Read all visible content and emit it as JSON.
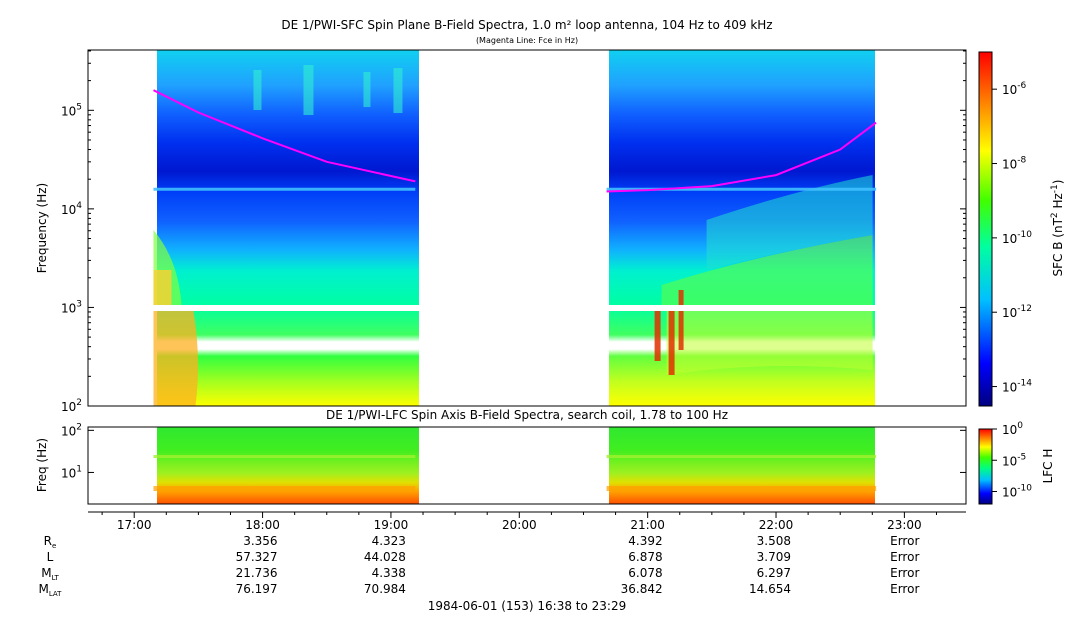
{
  "chart_data": [
    {
      "type": "heatmap",
      "title": "DE 1/PWI-SFC  Spin Plane B-Field Spectra, 1.0 m² loop antenna, 104 Hz to 409 kHz",
      "subtitle": "(Magenta Line: Fce in Hz)",
      "ylabel": "Frequency (Hz)",
      "yscale": "log",
      "ylim": [
        100,
        409000
      ],
      "ytick_values": [
        100,
        1000,
        10000,
        100000
      ],
      "ytick_bases": [
        "10",
        "10",
        "10",
        "10"
      ],
      "ytick_exps": [
        "2",
        "3",
        "4",
        "5"
      ],
      "xlim_hours": [
        16.64,
        23.48
      ],
      "data_segments_hours": [
        [
          17.15,
          19.19
        ],
        [
          20.68,
          22.78
        ]
      ],
      "colorbar": {
        "label_main": "SFC B (nT",
        "label_exp1": "2",
        "label_mid": " Hz",
        "label_exp2": "-1",
        "label_end": ")",
        "scale": "log",
        "range": [
          3e-15,
          1e-05
        ],
        "ticks": [
          {
            "base": "10",
            "exp": "-6",
            "value": 1e-06
          },
          {
            "base": "10",
            "exp": "-8",
            "value": 1e-08
          },
          {
            "base": "10",
            "exp": "-10",
            "value": 1e-10
          },
          {
            "base": "10",
            "exp": "-12",
            "value": 1e-12
          },
          {
            "base": "10",
            "exp": "-14",
            "value": 1e-14
          }
        ]
      },
      "fce_line": {
        "name": "Fce",
        "color": "#ff00ff",
        "segment1": {
          "hours": [
            17.15,
            17.5,
            18.0,
            18.5,
            19.19
          ],
          "freq_hz": [
            160000,
            95000,
            52000,
            30000,
            19000
          ]
        },
        "segment2": {
          "hours": [
            20.68,
            21.0,
            21.5,
            22.0,
            22.5,
            22.78
          ],
          "freq_hz": [
            15000,
            15500,
            17000,
            22000,
            40000,
            75000
          ]
        }
      }
    },
    {
      "type": "heatmap",
      "title": "DE 1/PWI-LFC  Spin Axis B-Field Spectra, search coil, 1.78 to 100 Hz",
      "ylabel": "Freq (Hz)",
      "yscale": "log",
      "ylim": [
        1.78,
        120
      ],
      "ytick_values": [
        10,
        100
      ],
      "ytick_bases": [
        "10",
        "10"
      ],
      "ytick_exps": [
        "1",
        "2"
      ],
      "colorbar": {
        "label": "LFC H",
        "scale": "log",
        "range": [
          1e-12,
          1
        ],
        "ticks": [
          {
            "base": "10",
            "exp": "0",
            "value": 1
          },
          {
            "base": "10",
            "exp": "-5",
            "value": 1e-05
          },
          {
            "base": "10",
            "exp": "-10",
            "value": 1e-10
          }
        ]
      }
    }
  ],
  "time_axis": {
    "ticks": [
      {
        "label": "17:00",
        "hour": 17
      },
      {
        "label": "18:00",
        "hour": 18
      },
      {
        "label": "19:00",
        "hour": 19
      },
      {
        "label": "20:00",
        "hour": 20
      },
      {
        "label": "21:00",
        "hour": 21
      },
      {
        "label": "22:00",
        "hour": 22
      },
      {
        "label": "23:00",
        "hour": 23
      }
    ],
    "date_label": "1984-06-01 (153) 16:38 to 23:29"
  },
  "ephemeris": {
    "rows": [
      {
        "name_main": "R",
        "name_sub": "e",
        "values": [
          "3.356",
          "4.323",
          "",
          "4.392",
          "3.508",
          "Error"
        ]
      },
      {
        "name_main": "L",
        "name_sub": "",
        "values": [
          "57.327",
          "44.028",
          "",
          "6.878",
          "3.709",
          "Error"
        ]
      },
      {
        "name_main": "M",
        "name_sub": "LT",
        "values": [
          "21.736",
          "4.338",
          "",
          "6.078",
          "6.297",
          "Error"
        ]
      },
      {
        "name_main": "M",
        "name_sub": "LAT",
        "values": [
          "76.197",
          "70.984",
          "",
          "36.842",
          "14.654",
          "Error"
        ]
      }
    ]
  }
}
